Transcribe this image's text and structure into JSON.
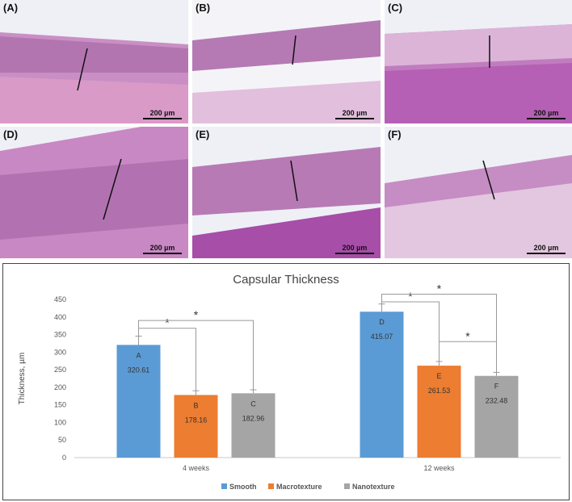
{
  "panels": [
    {
      "label": "(A)",
      "scale": "200 µm"
    },
    {
      "label": "(B)",
      "scale": "200 µm"
    },
    {
      "label": "(C)",
      "scale": "200 µm"
    },
    {
      "label": "(D)",
      "scale": "200 µm"
    },
    {
      "label": "(E)",
      "scale": "200 µm"
    },
    {
      "label": "(F)",
      "scale": "200 µm"
    }
  ],
  "chart_data": {
    "type": "bar",
    "title": "Capsular Thickness",
    "ylabel": "Thickness, µm",
    "xlabel": "",
    "ylim": [
      0,
      450
    ],
    "yticks": [
      0,
      50,
      100,
      150,
      200,
      250,
      300,
      350,
      400,
      450
    ],
    "categories": [
      "4 weeks",
      "12 weeks"
    ],
    "series": [
      {
        "name": "Smooth",
        "color": "#5b9bd5",
        "values": [
          320.61,
          415.07
        ],
        "letters": [
          "A",
          "D"
        ],
        "errors": [
          25,
          22
        ]
      },
      {
        "name": "Macrotexture",
        "color": "#ed7d31",
        "values": [
          178.16,
          261.53
        ],
        "letters": [
          "B",
          "E"
        ],
        "errors": [
          12,
          12
        ]
      },
      {
        "name": "Nanotexture",
        "color": "#a5a5a5",
        "values": [
          182.96,
          232.48
        ],
        "letters": [
          "C",
          "F"
        ],
        "errors": [
          10,
          10
        ]
      }
    ],
    "value_labels": [
      [
        "320.61",
        "415.07"
      ],
      [
        "178.16",
        "261.53"
      ],
      [
        "182.96",
        "232.48"
      ]
    ],
    "significance_marker": "*",
    "legend_position": "bottom",
    "grid": false
  }
}
